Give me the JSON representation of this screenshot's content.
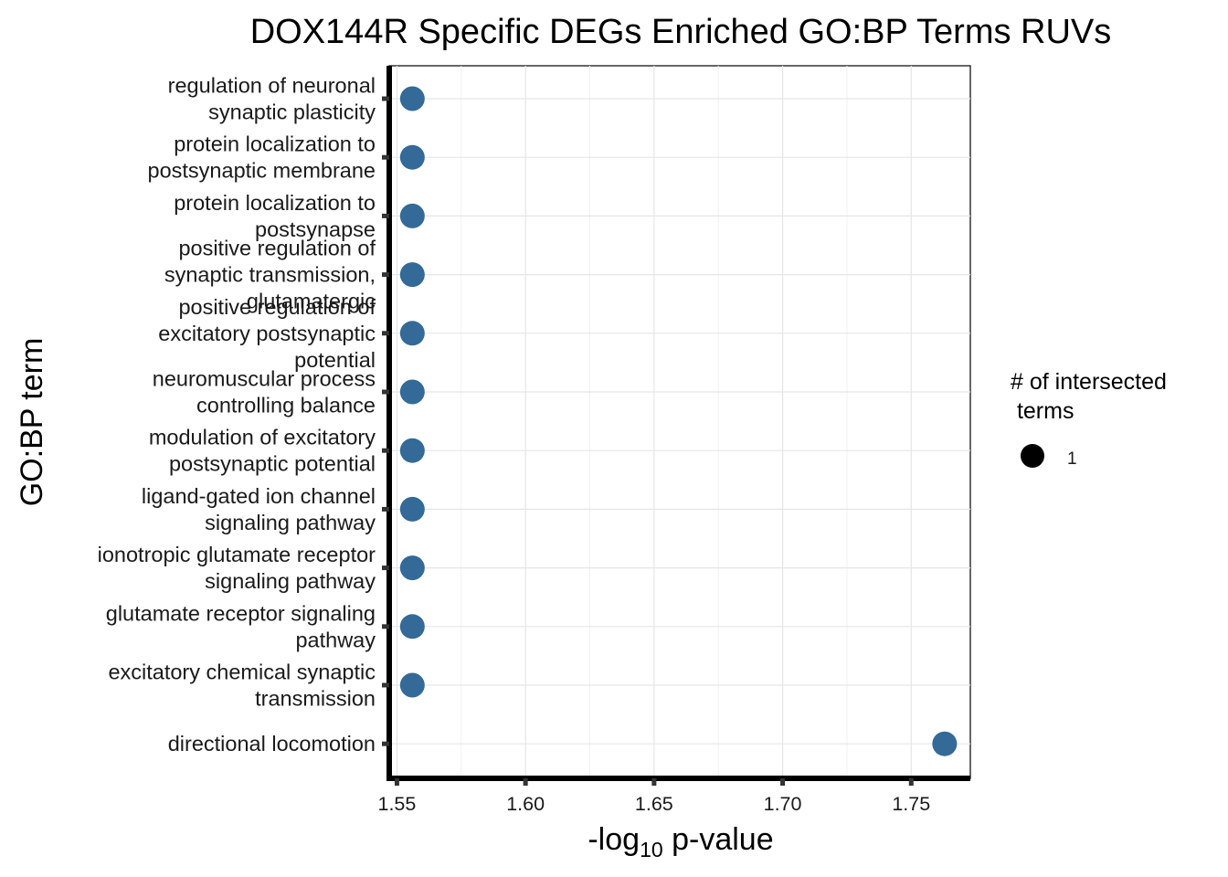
{
  "chart_data": {
    "type": "scatter",
    "title": "DOX144R Specific DEGs Enriched GO:BP Terms RUVs",
    "xlabel_prefix": "-log",
    "xlabel_subscript": "10",
    "xlabel_suffix": " p-value",
    "ylabel": "GO:BP term",
    "xlim": [
      1.547,
      1.773
    ],
    "x_ticks": [
      1.55,
      1.6,
      1.65,
      1.7,
      1.75
    ],
    "x_tick_labels": [
      "1.55",
      "1.60",
      "1.65",
      "1.70",
      "1.75"
    ],
    "grid": true,
    "point_color": "#336a98",
    "legend": {
      "title_line1": "# of intersected",
      "title_line2": " terms",
      "entries": [
        {
          "label": "1",
          "size": 1
        }
      ],
      "position": "right"
    },
    "points": [
      {
        "term": "regulation of neuronal synaptic plasticity",
        "lines": [
          "regulation of neuronal",
          "synaptic plasticity"
        ],
        "x": 1.556,
        "size": 1
      },
      {
        "term": "protein localization to postsynaptic membrane",
        "lines": [
          "protein localization to",
          "postsynaptic membrane"
        ],
        "x": 1.556,
        "size": 1
      },
      {
        "term": "protein localization to postsynapse",
        "lines": [
          "protein localization to",
          "postsynapse"
        ],
        "x": 1.556,
        "size": 1
      },
      {
        "term": "positive regulation of synaptic transmission, glutamatergic",
        "lines": [
          "positive regulation of",
          "synaptic transmission,",
          "glutamatergic"
        ],
        "x": 1.556,
        "size": 1
      },
      {
        "term": "positive regulation of excitatory postsynaptic potential",
        "lines": [
          "positive regulation of",
          "excitatory postsynaptic",
          "potential"
        ],
        "x": 1.556,
        "size": 1
      },
      {
        "term": "neuromuscular process controlling balance",
        "lines": [
          "neuromuscular process",
          "controlling balance"
        ],
        "x": 1.556,
        "size": 1
      },
      {
        "term": "modulation of excitatory postsynaptic potential",
        "lines": [
          "modulation of excitatory",
          "postsynaptic potential"
        ],
        "x": 1.556,
        "size": 1
      },
      {
        "term": "ligand-gated ion channel signaling pathway",
        "lines": [
          "ligand-gated ion channel",
          "signaling pathway"
        ],
        "x": 1.556,
        "size": 1
      },
      {
        "term": "ionotropic glutamate receptor signaling pathway",
        "lines": [
          "ionotropic glutamate receptor",
          "signaling pathway"
        ],
        "x": 1.556,
        "size": 1
      },
      {
        "term": "glutamate receptor signaling pathway",
        "lines": [
          "glutamate receptor signaling",
          "pathway"
        ],
        "x": 1.556,
        "size": 1
      },
      {
        "term": "excitatory chemical synaptic transmission",
        "lines": [
          "excitatory chemical synaptic",
          "transmission"
        ],
        "x": 1.556,
        "size": 1
      },
      {
        "term": "directional locomotion",
        "lines": [
          "directional locomotion"
        ],
        "x": 1.763,
        "size": 1
      }
    ]
  }
}
